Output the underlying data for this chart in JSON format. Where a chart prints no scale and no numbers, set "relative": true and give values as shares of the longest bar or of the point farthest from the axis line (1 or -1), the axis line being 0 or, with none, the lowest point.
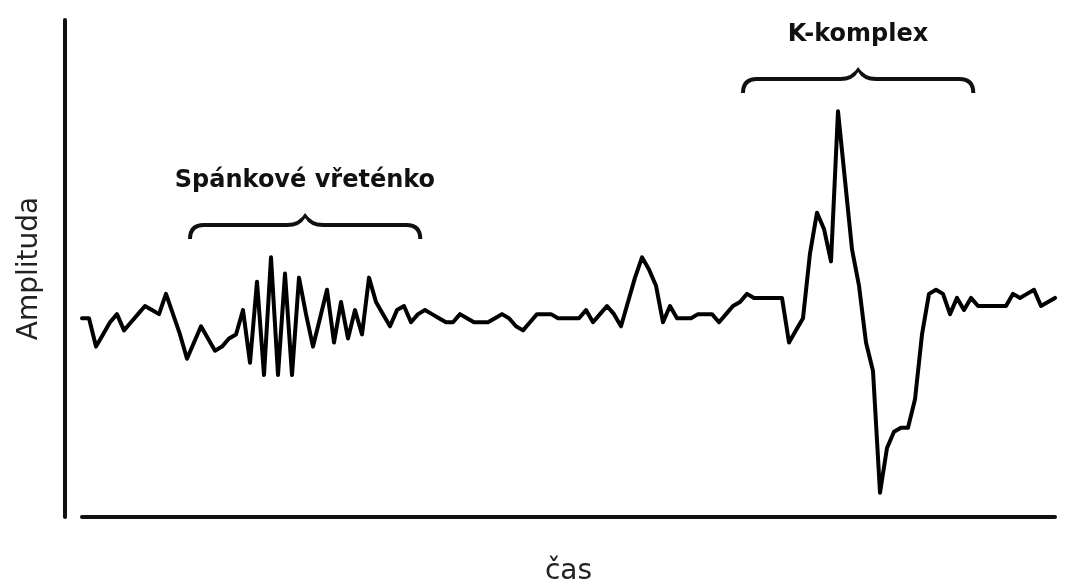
{
  "chart_data": {
    "type": "line",
    "relative": true,
    "xlabel": "čas",
    "ylabel": "Amplituda",
    "annotations": [
      "Spánkové vřeténko",
      "K-komplex"
    ],
    "marker": "none",
    "line_style": "solid",
    "categories": [
      null,
      null,
      null,
      null,
      null,
      null,
      null,
      null,
      null,
      null,
      null,
      null,
      null,
      null,
      null,
      null,
      null,
      null,
      null,
      null,
      null,
      null,
      null,
      null,
      null,
      null,
      null,
      null,
      null,
      null,
      null,
      null,
      null,
      null,
      null,
      null,
      null,
      null,
      null,
      null,
      null,
      null,
      null,
      null,
      null,
      null,
      null,
      null,
      null,
      null,
      null,
      null,
      null,
      null,
      null,
      null,
      null,
      null,
      null,
      null,
      null,
      null,
      null,
      null,
      null,
      null,
      null,
      null,
      null,
      null,
      null,
      null,
      null,
      null,
      null,
      null,
      null,
      null,
      null,
      null,
      null,
      null,
      null,
      null,
      null,
      null,
      null,
      null,
      null,
      null,
      null,
      null,
      null,
      null,
      null,
      null,
      null,
      null,
      null,
      null,
      null,
      null,
      null,
      null,
      null,
      null,
      null,
      null,
      null,
      null,
      null,
      null,
      null,
      null,
      null,
      null,
      null,
      null,
      null,
      null,
      null,
      null,
      null,
      null,
      null,
      null,
      null,
      null,
      null,
      null,
      null,
      null,
      null,
      null,
      null,
      null,
      null,
      null,
      null,
      null
    ],
    "series": [
      {
        "color": "#000000",
        "values": [
          0.49,
          0.49,
          0.42,
          0.45,
          0.48,
          0.5,
          0.46,
          0.48,
          0.5,
          0.52,
          0.51,
          0.5,
          0.55,
          0.5,
          0.45,
          0.39,
          0.43,
          0.47,
          0.44,
          0.41,
          0.42,
          0.44,
          0.45,
          0.51,
          0.38,
          0.58,
          0.35,
          0.64,
          0.35,
          0.6,
          0.35,
          0.59,
          0.5,
          0.42,
          0.49,
          0.56,
          0.43,
          0.53,
          0.44,
          0.51,
          0.45,
          0.59,
          0.53,
          0.5,
          0.47,
          0.51,
          0.52,
          0.48,
          0.5,
          0.51,
          0.5,
          0.49,
          0.48,
          0.48,
          0.5,
          0.49,
          0.48,
          0.48,
          0.48,
          0.49,
          0.5,
          0.49,
          0.47,
          0.46,
          0.48,
          0.5,
          0.5,
          0.5,
          0.49,
          0.49,
          0.49,
          0.49,
          0.51,
          0.48,
          0.5,
          0.52,
          0.5,
          0.47,
          0.53,
          0.59,
          0.64,
          0.61,
          0.57,
          0.48,
          0.52,
          0.49,
          0.49,
          0.49,
          0.5,
          0.5,
          0.5,
          0.48,
          0.5,
          0.52,
          0.53,
          0.55,
          0.54,
          0.54,
          0.54,
          0.54,
          0.54,
          0.43,
          0.46,
          0.49,
          0.65,
          0.75,
          0.71,
          0.63,
          1,
          0.83,
          0.66,
          0.57,
          0.43,
          0.36,
          0.06,
          0.17,
          0.21,
          0.22,
          0.22,
          0.29,
          0.45,
          0.55,
          0.56,
          0.55,
          0.5,
          0.54,
          0.51,
          0.54,
          0.52,
          0.52,
          0.52,
          0.52,
          0.52,
          0.55,
          0.54,
          0.55,
          0.56,
          0.52,
          0.53,
          0.54
        ]
      }
    ]
  }
}
